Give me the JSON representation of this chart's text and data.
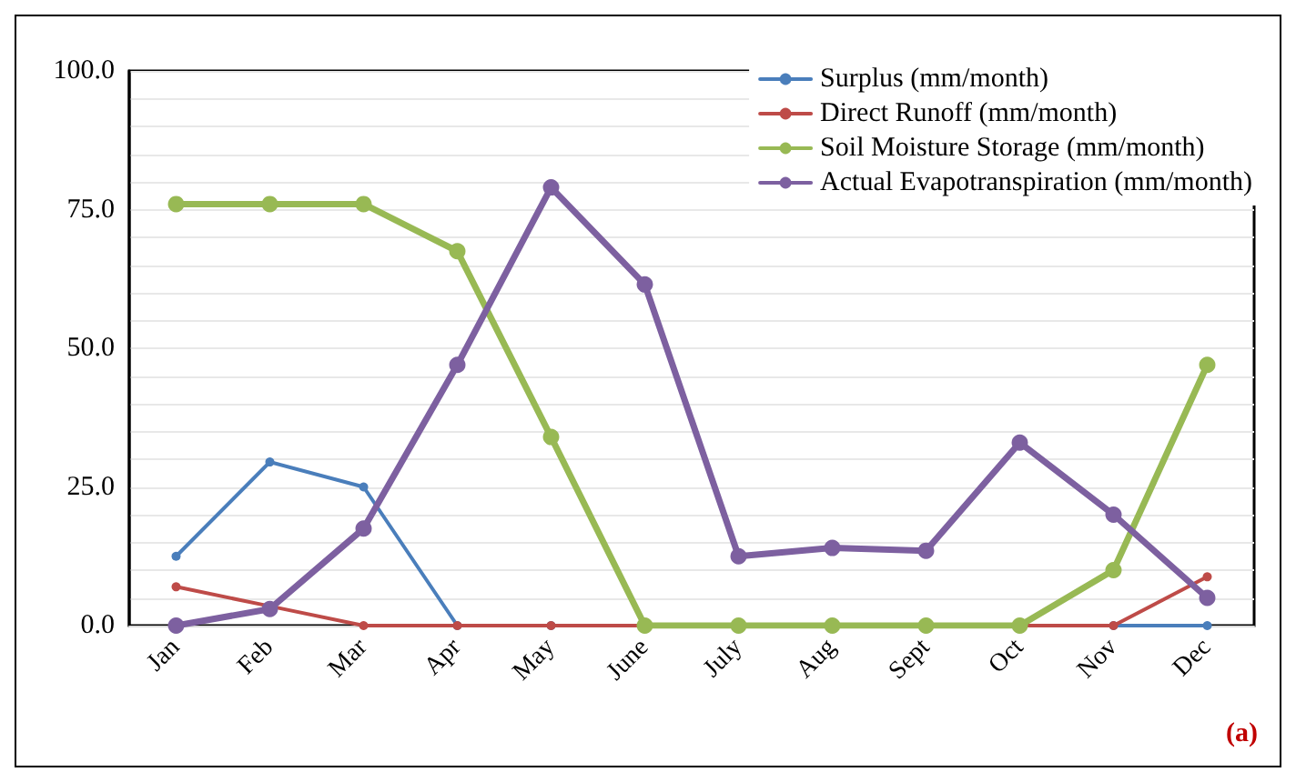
{
  "chart_data": {
    "type": "line",
    "categories": [
      "Jan",
      "Feb",
      "Mar",
      "Apr",
      "May",
      "June",
      "July",
      "Aug",
      "Sept",
      "Oct",
      "Nov",
      "Dec"
    ],
    "series": [
      {
        "name": "Surplus (mm/month)",
        "color": "#4a7ebb",
        "values": [
          12.5,
          29.5,
          25,
          0,
          0,
          0,
          0,
          0,
          0,
          0,
          0,
          0
        ]
      },
      {
        "name": "Direct Runoff (mm/month)",
        "color": "#be4b48",
        "values": [
          7,
          3.5,
          0,
          0,
          0,
          0,
          0,
          0,
          0,
          0,
          0,
          8.8
        ]
      },
      {
        "name": "Soil Moisture Storage (mm/month)",
        "color": "#98b954",
        "values": [
          76,
          76,
          76,
          67.5,
          34,
          0,
          0,
          0,
          0,
          0,
          10,
          47
        ]
      },
      {
        "name": "Actual Evapotranspiration (mm/month)",
        "color": "#7d60a0",
        "values": [
          0,
          3,
          17.5,
          47,
          79,
          61.5,
          12.5,
          14,
          13.5,
          33,
          20,
          5
        ]
      }
    ],
    "ylim": [
      0,
      100
    ],
    "yticks": [
      {
        "value": 0,
        "label": "0.0"
      },
      {
        "value": 5,
        "label": null
      },
      {
        "value": 10,
        "label": null
      },
      {
        "value": 15,
        "label": null
      },
      {
        "value": 20,
        "label": null
      },
      {
        "value": 25,
        "label": "25.0"
      },
      {
        "value": 30,
        "label": null
      },
      {
        "value": 35,
        "label": null
      },
      {
        "value": 40,
        "label": null
      },
      {
        "value": 45,
        "label": null
      },
      {
        "value": 50,
        "label": "50.0"
      },
      {
        "value": 55,
        "label": null
      },
      {
        "value": 60,
        "label": null
      },
      {
        "value": 65,
        "label": null
      },
      {
        "value": 70,
        "label": null
      },
      {
        "value": 75,
        "label": "75.0"
      },
      {
        "value": 80,
        "label": null
      },
      {
        "value": 85,
        "label": null
      },
      {
        "value": 90,
        "label": null
      },
      {
        "value": 95,
        "label": null
      },
      {
        "value": 100,
        "label": "100.0"
      }
    ],
    "grid": "y",
    "legend": "top right",
    "marker": "circle",
    "line_style": "solid",
    "annotations": [
      "(a)"
    ]
  }
}
